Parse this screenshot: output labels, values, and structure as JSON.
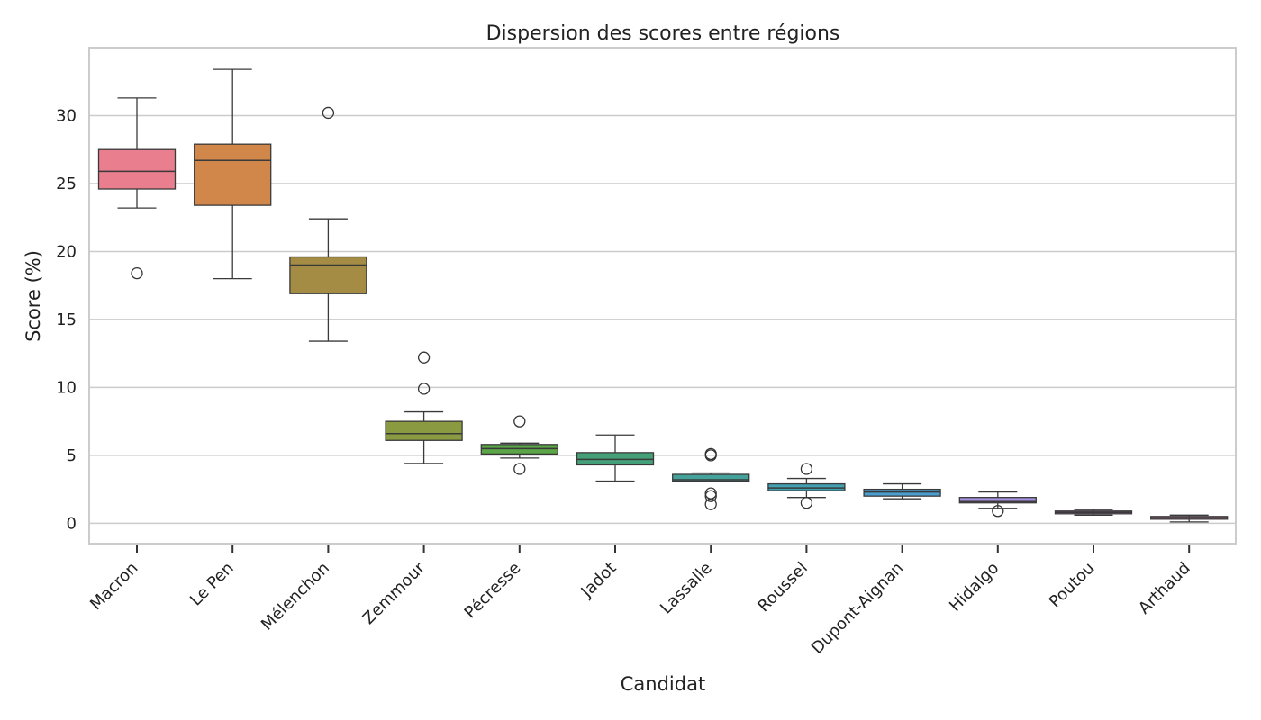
{
  "chart_data": {
    "type": "box",
    "title": "Dispersion des scores entre régions",
    "xlabel": "Candidat",
    "ylabel": "Score (%)",
    "ylim": [
      -1.5,
      35
    ],
    "yticks": [
      0,
      5,
      10,
      15,
      20,
      25,
      30
    ],
    "grid": "horizontal",
    "categories": [
      "Macron",
      "Le Pen",
      "Mélenchon",
      "Zemmour",
      "Pécresse",
      "Jadot",
      "Lassalle",
      "Roussel",
      "Dupont-Aignan",
      "Hidalgo",
      "Poutou",
      "Arthaud"
    ],
    "boxes": [
      {
        "whisker_low": 23.2,
        "q1": 24.6,
        "median": 25.9,
        "q3": 27.5,
        "whisker_high": 31.3,
        "outliers": [
          18.4
        ],
        "color": "#e97e8e"
      },
      {
        "whisker_low": 18.0,
        "q1": 23.4,
        "median": 26.7,
        "q3": 27.9,
        "whisker_high": 33.4,
        "outliers": [],
        "color": "#d2874a"
      },
      {
        "whisker_low": 13.4,
        "q1": 16.9,
        "median": 19.0,
        "q3": 19.6,
        "whisker_high": 22.4,
        "outliers": [
          30.2
        ],
        "color": "#a58c45"
      },
      {
        "whisker_low": 4.4,
        "q1": 6.1,
        "median": 6.6,
        "q3": 7.5,
        "whisker_high": 8.2,
        "outliers": [
          9.9,
          12.2
        ],
        "color": "#8a9a41"
      },
      {
        "whisker_low": 4.8,
        "q1": 5.1,
        "median": 5.5,
        "q3": 5.8,
        "whisker_high": 5.9,
        "outliers": [
          7.5,
          4.0
        ],
        "color": "#5aa545"
      },
      {
        "whisker_low": 3.1,
        "q1": 4.3,
        "median": 4.7,
        "q3": 5.2,
        "whisker_high": 6.5,
        "outliers": [],
        "color": "#45a07a"
      },
      {
        "whisker_low": 3.1,
        "q1": 3.1,
        "median": 3.2,
        "q3": 3.6,
        "whisker_high": 3.7,
        "outliers": [
          5.0,
          5.1,
          2.2,
          2.0,
          1.4
        ],
        "color": "#44a29b"
      },
      {
        "whisker_low": 1.9,
        "q1": 2.4,
        "median": 2.6,
        "q3": 2.9,
        "whisker_high": 3.3,
        "outliers": [
          4.0,
          1.5
        ],
        "color": "#43a0b0"
      },
      {
        "whisker_low": 1.8,
        "q1": 2.0,
        "median": 2.3,
        "q3": 2.5,
        "whisker_high": 2.9,
        "outliers": [],
        "color": "#4b9fd0"
      },
      {
        "whisker_low": 1.1,
        "q1": 1.5,
        "median": 1.6,
        "q3": 1.9,
        "whisker_high": 2.3,
        "outliers": [
          0.9
        ],
        "color": "#a590e0"
      },
      {
        "whisker_low": 0.6,
        "q1": 0.7,
        "median": 0.8,
        "q3": 0.9,
        "whisker_high": 1.0,
        "outliers": [],
        "color": "#d57ce0"
      },
      {
        "whisker_low": 0.1,
        "q1": 0.3,
        "median": 0.4,
        "q3": 0.5,
        "whisker_high": 0.6,
        "outliers": [],
        "color": "#e57ab0"
      }
    ]
  }
}
